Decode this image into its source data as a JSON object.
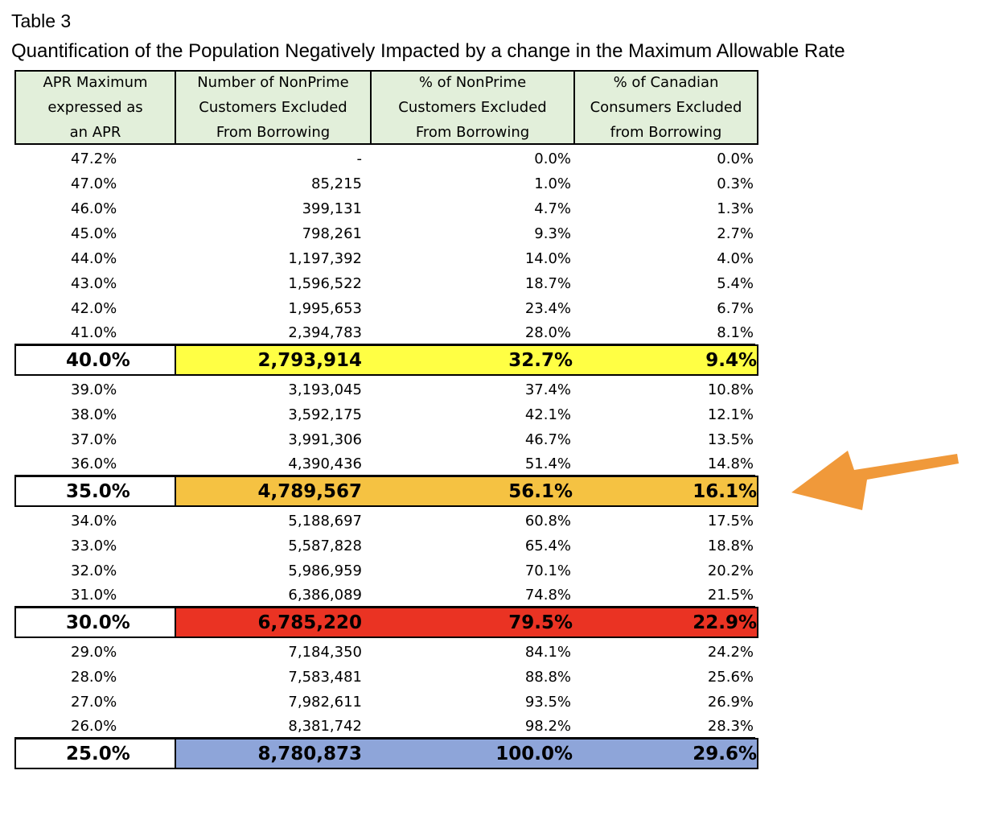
{
  "caption": {
    "label": "Table 3",
    "title": "Quantification of the Population Negatively Impacted by a change in the Maximum Allowable Rate"
  },
  "headers": [
    [
      "APR Maximum",
      "expressed as",
      "an APR"
    ],
    [
      "Number of NonPrime",
      "Customers Excluded",
      "From Borrowing"
    ],
    [
      "% of NonPrime",
      "Customers Excluded",
      "From Borrowing"
    ],
    [
      "% of Canadian",
      "Consumers Excluded",
      "from Borrowing"
    ]
  ],
  "groups": [
    {
      "rows": [
        [
          "47.2%",
          "-",
          "0.0%",
          "0.0%"
        ],
        [
          "47.0%",
          "85,215",
          "1.0%",
          "0.3%"
        ],
        [
          "46.0%",
          "399,131",
          "4.7%",
          "1.3%"
        ],
        [
          "45.0%",
          "798,261",
          "9.3%",
          "2.7%"
        ],
        [
          "44.0%",
          "1,197,392",
          "14.0%",
          "4.0%"
        ],
        [
          "43.0%",
          "1,596,522",
          "18.7%",
          "5.4%"
        ],
        [
          "42.0%",
          "1,995,653",
          "23.4%",
          "6.7%"
        ],
        [
          "41.0%",
          "2,394,783",
          "28.0%",
          "8.1%"
        ]
      ],
      "highlight": {
        "cells": [
          "40.0%",
          "2,793,914",
          "32.7%",
          "9.4%"
        ],
        "color": "#ffff44"
      }
    },
    {
      "rows": [
        [
          "39.0%",
          "3,193,045",
          "37.4%",
          "10.8%"
        ],
        [
          "38.0%",
          "3,592,175",
          "42.1%",
          "12.1%"
        ],
        [
          "37.0%",
          "3,991,306",
          "46.7%",
          "13.5%"
        ],
        [
          "36.0%",
          "4,390,436",
          "51.4%",
          "14.8%"
        ]
      ],
      "highlight": {
        "cells": [
          "35.0%",
          "4,789,567",
          "56.1%",
          "16.1%"
        ],
        "color": "#f5c242"
      }
    },
    {
      "rows": [
        [
          "34.0%",
          "5,188,697",
          "60.8%",
          "17.5%"
        ],
        [
          "33.0%",
          "5,587,828",
          "65.4%",
          "18.8%"
        ],
        [
          "32.0%",
          "5,986,959",
          "70.1%",
          "20.2%"
        ],
        [
          "31.0%",
          "6,386,089",
          "74.8%",
          "21.5%"
        ]
      ],
      "highlight": {
        "cells": [
          "30.0%",
          "6,785,220",
          "79.5%",
          "22.9%"
        ],
        "color": "#ea3323"
      }
    },
    {
      "rows": [
        [
          "29.0%",
          "7,184,350",
          "84.1%",
          "24.2%"
        ],
        [
          "28.0%",
          "7,583,481",
          "88.8%",
          "25.6%"
        ],
        [
          "27.0%",
          "7,982,611",
          "93.5%",
          "26.9%"
        ],
        [
          "26.0%",
          "8,381,742",
          "98.2%",
          "28.3%"
        ]
      ],
      "highlight": {
        "cells": [
          "25.0%",
          "8,780,873",
          "100.0%",
          "29.6%"
        ],
        "color": "#8ea5d9"
      }
    }
  ],
  "colors": {
    "header_bg": "#e2efda",
    "arrow": "#f0993a"
  },
  "arrow_icon": "arrow-left-icon"
}
